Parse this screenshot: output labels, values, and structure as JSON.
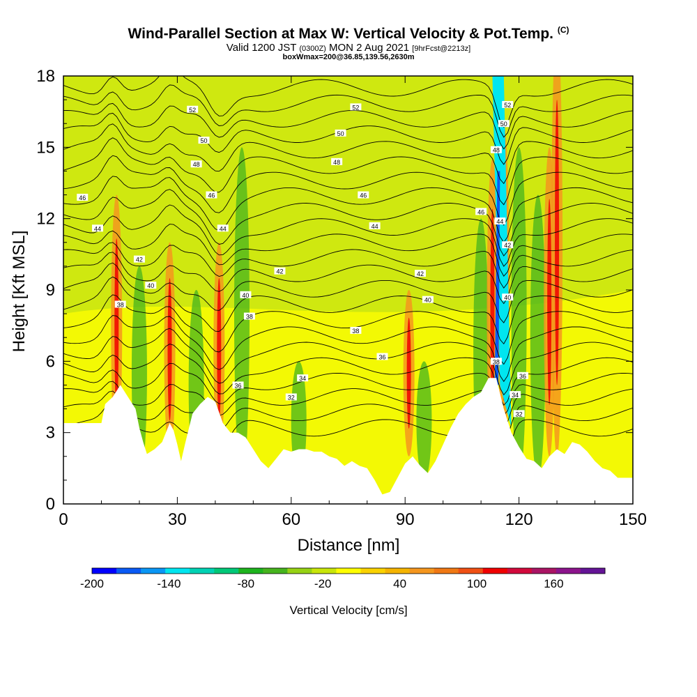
{
  "header": {
    "title_main": "Wind-Parallel Section at Max W: Vertical Velocity & Pot.Temp.",
    "title_mark": "(C)",
    "valid_prefix": "Valid 1200 JST",
    "valid_zulu": "(0300Z)",
    "valid_date": "MON 2 Aug 2021",
    "forecast": "[9hrFcst@2213z]",
    "box_info": "boxWmax=200@36.85,139.56,2630m"
  },
  "chart_data": {
    "type": "heatmap",
    "title": "Wind-Parallel Section at Max W: Vertical Velocity & Pot.Temp.",
    "xlabel": "Distance [nm]",
    "ylabel": "Height [Kft MSL]",
    "xlim": [
      0,
      150
    ],
    "ylim": [
      0,
      18
    ],
    "xticks": [
      0,
      30,
      60,
      90,
      120,
      150
    ],
    "yticks": [
      0,
      3,
      6,
      9,
      12,
      15,
      18
    ],
    "colorbar": {
      "label": "Vertical Velocity [cm/s]",
      "range": [
        -200,
        200
      ],
      "tick_labels": [
        -200,
        -140,
        -80,
        -20,
        40,
        100,
        160
      ],
      "colors": [
        "#0000ff",
        "#0a5af5",
        "#0a96f5",
        "#00e6f0",
        "#00d2b4",
        "#00c878",
        "#1eb41e",
        "#46b41e",
        "#96d214",
        "#c8e60a",
        "#ffff00",
        "#fad200",
        "#f5b400",
        "#f5961e",
        "#f07814",
        "#f05014",
        "#f00000",
        "#d20a3c",
        "#aa1464",
        "#8c148c",
        "#641496"
      ]
    },
    "terrain_kft": [
      [
        0,
        3.4
      ],
      [
        10,
        3.4
      ],
      [
        11,
        4.2
      ],
      [
        13,
        4.5
      ],
      [
        15,
        5
      ],
      [
        17,
        4.5
      ],
      [
        19,
        4
      ],
      [
        20,
        3.2
      ],
      [
        21,
        2.6
      ],
      [
        22,
        2.1
      ],
      [
        24,
        2.3
      ],
      [
        26,
        2.6
      ],
      [
        28,
        3.4
      ],
      [
        29,
        3.1
      ],
      [
        30,
        2.5
      ],
      [
        31,
        1.8
      ],
      [
        32,
        2.5
      ],
      [
        34,
        3.8
      ],
      [
        36,
        4.2
      ],
      [
        38,
        4.5
      ],
      [
        40,
        4.3
      ],
      [
        42,
        3.4
      ],
      [
        44,
        3
      ],
      [
        46,
        3
      ],
      [
        48,
        2.8
      ],
      [
        50,
        2.3
      ],
      [
        52,
        1.8
      ],
      [
        54,
        1.5
      ],
      [
        56,
        1.9
      ],
      [
        58,
        2.3
      ],
      [
        60,
        2.2
      ],
      [
        62,
        2.3
      ],
      [
        64,
        2.3
      ],
      [
        66,
        2.2
      ],
      [
        68,
        2.2
      ],
      [
        70,
        2
      ],
      [
        72,
        1.9
      ],
      [
        74,
        1.6
      ],
      [
        76,
        1.8
      ],
      [
        78,
        1.6
      ],
      [
        80,
        1.5
      ],
      [
        82,
        1
      ],
      [
        84,
        0.4
      ],
      [
        86,
        0.5
      ],
      [
        88,
        1.1
      ],
      [
        90,
        1.7
      ],
      [
        92,
        2
      ],
      [
        94,
        1.6
      ],
      [
        96,
        1.3
      ],
      [
        98,
        1.8
      ],
      [
        100,
        2.5
      ],
      [
        102,
        3.2
      ],
      [
        104,
        3.8
      ],
      [
        106,
        4.2
      ],
      [
        108,
        4.5
      ],
      [
        110,
        4.7
      ],
      [
        112,
        5.3
      ],
      [
        114,
        5.3
      ],
      [
        116,
        4
      ],
      [
        118,
        3
      ],
      [
        120,
        2.4
      ],
      [
        122,
        1.9
      ],
      [
        124,
        1.8
      ],
      [
        126,
        1.5
      ],
      [
        128,
        2
      ],
      [
        130,
        2.3
      ],
      [
        132,
        2.1
      ],
      [
        134,
        2.6
      ],
      [
        136,
        2.5
      ],
      [
        138,
        2.2
      ],
      [
        140,
        1.8
      ],
      [
        142,
        1.5
      ],
      [
        144,
        1.4
      ],
      [
        146,
        1.1
      ],
      [
        148,
        1.1
      ],
      [
        150,
        1.1
      ]
    ],
    "updraft_bands": [
      {
        "x": 14,
        "ytop": 11
      },
      {
        "x": 28,
        "ytop": 9
      },
      {
        "x": 41,
        "ytop": 9
      },
      {
        "x": 91,
        "ytop": 7
      },
      {
        "x": 113,
        "ytop": 12.5
      },
      {
        "x": 116,
        "ytop": 14
      },
      {
        "x": 128,
        "ytop": 13
      },
      {
        "x": 130,
        "ytop": 18
      }
    ],
    "downdraft_bands": [
      {
        "x": 20,
        "ytop": 9
      },
      {
        "x": 35,
        "ytop": 8
      },
      {
        "x": 47,
        "ytop": 14
      },
      {
        "x": 62,
        "ytop": 5
      },
      {
        "x": 95,
        "ytop": 5
      },
      {
        "x": 110,
        "ytop": 11
      },
      {
        "x": 125,
        "ytop": 12
      },
      {
        "x": 120,
        "ytop": 14
      }
    ],
    "theta_isotherm_labels": [
      {
        "label": "52",
        "x": 34,
        "y": 16.6
      },
      {
        "label": "52",
        "x": 77,
        "y": 16.7
      },
      {
        "label": "50",
        "x": 37,
        "y": 15.3
      },
      {
        "label": "50",
        "x": 73,
        "y": 15.6
      },
      {
        "label": "48",
        "x": 35,
        "y": 14.3
      },
      {
        "label": "48",
        "x": 72,
        "y": 14.4
      },
      {
        "label": "46",
        "x": 5,
        "y": 12.9
      },
      {
        "label": "46",
        "x": 39,
        "y": 13
      },
      {
        "label": "46",
        "x": 79,
        "y": 13
      },
      {
        "label": "46",
        "x": 110,
        "y": 12.3
      },
      {
        "label": "44",
        "x": 9,
        "y": 11.6
      },
      {
        "label": "44",
        "x": 42,
        "y": 11.6
      },
      {
        "label": "44",
        "x": 82,
        "y": 11.7
      },
      {
        "label": "42",
        "x": 20,
        "y": 10.3
      },
      {
        "label": "42",
        "x": 57,
        "y": 9.8
      },
      {
        "label": "42",
        "x": 94,
        "y": 9.7
      },
      {
        "label": "40",
        "x": 23,
        "y": 9.2
      },
      {
        "label": "40",
        "x": 48,
        "y": 8.8
      },
      {
        "label": "40",
        "x": 96,
        "y": 8.6
      },
      {
        "label": "38",
        "x": 15,
        "y": 8.4
      },
      {
        "label": "38",
        "x": 49,
        "y": 7.9
      },
      {
        "label": "38",
        "x": 77,
        "y": 7.3
      },
      {
        "label": "36",
        "x": 84,
        "y": 6.2
      },
      {
        "label": "36",
        "x": 46,
        "y": 5
      },
      {
        "label": "34",
        "x": 63,
        "y": 5.3
      },
      {
        "label": "32",
        "x": 60,
        "y": 4.5
      }
    ],
    "hot_labels": [
      {
        "label": "52",
        "x": 117,
        "y": 16.8
      },
      {
        "label": "50",
        "x": 116,
        "y": 16
      },
      {
        "label": "48",
        "x": 114,
        "y": 14.9
      },
      {
        "label": "44",
        "x": 115,
        "y": 11.9
      },
      {
        "label": "42",
        "x": 117,
        "y": 10.9
      },
      {
        "label": "40",
        "x": 117,
        "y": 8.7
      },
      {
        "label": "38",
        "x": 114,
        "y": 6
      },
      {
        "label": "36",
        "x": 121,
        "y": 5.4
      },
      {
        "label": "34",
        "x": 119,
        "y": 4.6
      },
      {
        "label": "32",
        "x": 120,
        "y": 3.8
      }
    ],
    "colorbar_title": "Vertical Velocity [cm/s]"
  }
}
